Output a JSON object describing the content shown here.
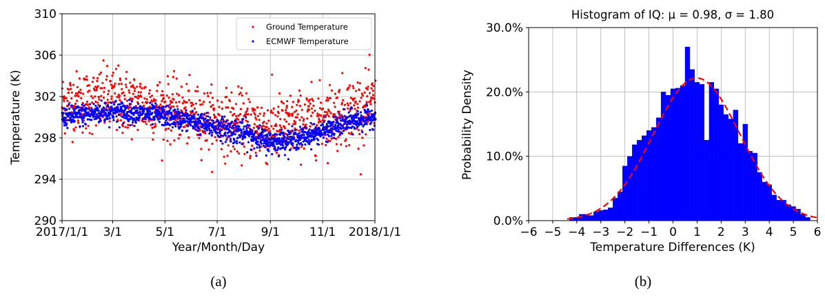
{
  "chart_data": [
    {
      "type": "scatter",
      "panel_label": "(a)",
      "xlabel": "Year/Month/Day",
      "ylabel": "Temperature (K)",
      "ylim": [
        290,
        310
      ],
      "yticks": [
        290,
        294,
        298,
        302,
        306,
        310
      ],
      "xlim": [
        "2017-01-01",
        "2018-01-01"
      ],
      "xticks": [
        {
          "date": "2017-01-01",
          "label": "2017/1/1"
        },
        {
          "date": "2017-03-01",
          "label": "3/1"
        },
        {
          "date": "2017-05-01",
          "label": "5/1"
        },
        {
          "date": "2017-07-01",
          "label": "7/1"
        },
        {
          "date": "2017-09-01",
          "label": "9/1"
        },
        {
          "date": "2017-11-01",
          "label": "11/1"
        },
        {
          "date": "2018-01-01",
          "label": "2018/1/1"
        }
      ],
      "grid": true,
      "legend_position": "top-right",
      "series": [
        {
          "name": "Ground Temperature",
          "color": "#ff0000",
          "monthly_profile": [
            {
              "date": "2017-01-01",
              "mean": 301.4,
              "spread": 2.4
            },
            {
              "date": "2017-02-01",
              "mean": 301.5,
              "spread": 2.5
            },
            {
              "date": "2017-03-01",
              "mean": 301.6,
              "spread": 2.7
            },
            {
              "date": "2017-04-01",
              "mean": 301.3,
              "spread": 2.5
            },
            {
              "date": "2017-05-01",
              "mean": 300.8,
              "spread": 2.4
            },
            {
              "date": "2017-06-01",
              "mean": 300.2,
              "spread": 2.3
            },
            {
              "date": "2017-07-01",
              "mean": 299.6,
              "spread": 2.5
            },
            {
              "date": "2017-08-01",
              "mean": 299.3,
              "spread": 2.6
            },
            {
              "date": "2017-09-01",
              "mean": 298.8,
              "spread": 2.7
            },
            {
              "date": "2017-10-01",
              "mean": 299.3,
              "spread": 2.5
            },
            {
              "date": "2017-11-01",
              "mean": 299.9,
              "spread": 2.6
            },
            {
              "date": "2017-12-01",
              "mean": 300.6,
              "spread": 2.7
            },
            {
              "date": "2018-01-01",
              "mean": 301.2,
              "spread": 2.6
            }
          ]
        },
        {
          "name": "ECMWF Temperature",
          "color": "#0000ff",
          "monthly_profile": [
            {
              "date": "2017-01-01",
              "mean": 300.0,
              "spread": 0.8
            },
            {
              "date": "2017-02-01",
              "mean": 300.3,
              "spread": 0.9
            },
            {
              "date": "2017-03-01",
              "mean": 300.6,
              "spread": 0.9
            },
            {
              "date": "2017-04-01",
              "mean": 300.4,
              "spread": 0.8
            },
            {
              "date": "2017-05-01",
              "mean": 300.1,
              "spread": 0.8
            },
            {
              "date": "2017-06-01",
              "mean": 299.6,
              "spread": 0.8
            },
            {
              "date": "2017-07-01",
              "mean": 299.0,
              "spread": 0.9
            },
            {
              "date": "2017-08-01",
              "mean": 298.5,
              "spread": 1.0
            },
            {
              "date": "2017-09-01",
              "mean": 297.6,
              "spread": 0.9
            },
            {
              "date": "2017-10-01",
              "mean": 297.9,
              "spread": 0.8
            },
            {
              "date": "2017-11-01",
              "mean": 298.6,
              "spread": 0.8
            },
            {
              "date": "2017-12-01",
              "mean": 299.5,
              "spread": 0.9
            },
            {
              "date": "2018-01-01",
              "mean": 300.1,
              "spread": 0.8
            }
          ]
        }
      ]
    },
    {
      "type": "bar",
      "panel_label": "(b)",
      "title": "Histogram of IQ: μ = 0.98, σ = 1.80",
      "xlabel": "Temperature Differences (K)",
      "ylabel": "Probability Density",
      "xlim": [
        -6,
        6
      ],
      "xticks": [
        -6,
        -5,
        -4,
        -3,
        -2,
        -1,
        0,
        1,
        2,
        3,
        4,
        5,
        6
      ],
      "xtick_labels": [
        "−6",
        "−5",
        "−4",
        "−3",
        "−2",
        "−1",
        "0",
        "1",
        "2",
        "3",
        "4",
        "5",
        "6"
      ],
      "ylim": [
        0,
        0.3
      ],
      "yticks": [
        0,
        0.1,
        0.2,
        0.3
      ],
      "ytick_labels": [
        "0.0%",
        "10.0%",
        "20.0%",
        "30.0%"
      ],
      "grid": true,
      "bar_color": "#0000ff",
      "bin_start": -4.3,
      "bin_width": 0.2,
      "values": [
        0.005,
        0.005,
        0.01,
        0.01,
        0.008,
        0.014,
        0.016,
        0.017,
        0.02,
        0.035,
        0.045,
        0.085,
        0.1,
        0.118,
        0.125,
        0.132,
        0.14,
        0.145,
        0.16,
        0.2,
        0.195,
        0.205,
        0.206,
        0.21,
        0.27,
        0.235,
        0.215,
        0.212,
        0.125,
        0.215,
        0.205,
        0.18,
        0.165,
        0.158,
        0.172,
        0.12,
        0.15,
        0.108,
        0.105,
        0.075,
        0.06,
        0.056,
        0.04,
        0.032,
        0.032,
        0.025,
        0.022,
        0.018,
        0.01,
        0.005
      ],
      "fit_curve": {
        "type": "normal",
        "mean": 0.98,
        "std": 1.8,
        "color": "#ff0000",
        "dash": "dashed"
      }
    }
  ]
}
